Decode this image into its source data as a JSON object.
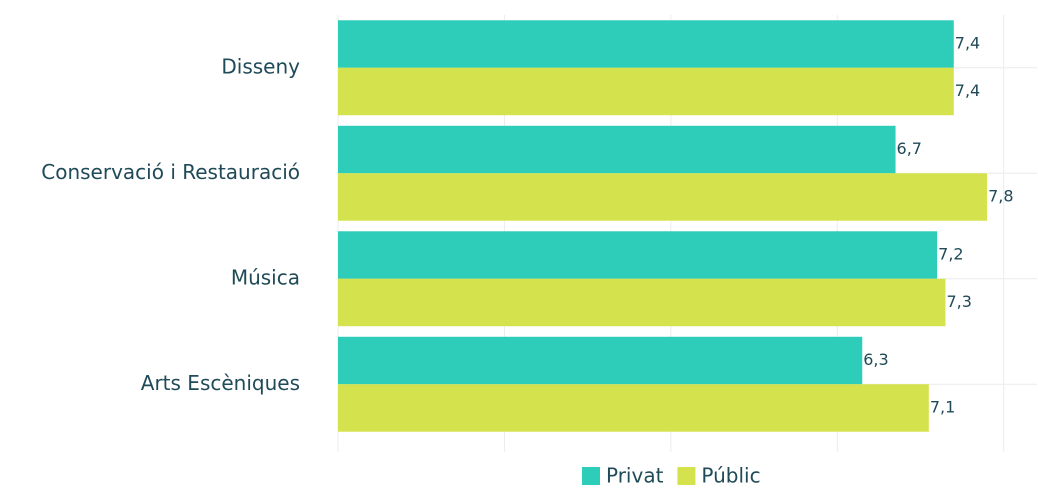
{
  "chart_data": {
    "type": "bar",
    "orientation": "horizontal",
    "categories": [
      "Disseny",
      "Conservació i Restauració",
      "Música",
      "Arts Escèniques"
    ],
    "series": [
      {
        "name": "Privat",
        "color": "#2ecdb9",
        "values": [
          7.4,
          6.7,
          7.2,
          6.3
        ],
        "value_labels": [
          "7,4",
          "6,7",
          "7,2",
          "6,3"
        ]
      },
      {
        "name": "Públic",
        "color": "#d4e34d",
        "values": [
          7.4,
          7.8,
          7.3,
          7.1
        ],
        "value_labels": [
          "7,4",
          "7,8",
          "7,3",
          "7,1"
        ]
      }
    ],
    "xlim": [
      0,
      8.4
    ],
    "xticks": [
      0,
      2,
      4,
      6,
      8
    ],
    "grid": true,
    "legend": "bottom"
  }
}
